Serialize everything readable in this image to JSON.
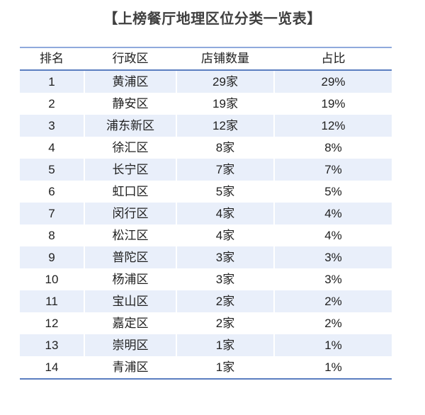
{
  "title": "【上榜餐厅地理区位分类一览表】",
  "chart_data": {
    "type": "table",
    "title": "上榜餐厅地理区位分类一览表",
    "columns": [
      "排名",
      "行政区",
      "店铺数量",
      "占比"
    ],
    "rows": [
      [
        "1",
        "黄浦区",
        "29家",
        "29%"
      ],
      [
        "2",
        "静安区",
        "19家",
        "19%"
      ],
      [
        "3",
        "浦东新区",
        "12家",
        "12%"
      ],
      [
        "4",
        "徐汇区",
        "8家",
        "8%"
      ],
      [
        "5",
        "长宁区",
        "7家",
        "7%"
      ],
      [
        "6",
        "虹口区",
        "5家",
        "5%"
      ],
      [
        "7",
        "闵行区",
        "4家",
        "4%"
      ],
      [
        "8",
        "松江区",
        "4家",
        "4%"
      ],
      [
        "9",
        "普陀区",
        "3家",
        "3%"
      ],
      [
        "10",
        "杨浦区",
        "3家",
        "3%"
      ],
      [
        "11",
        "宝山区",
        "2家",
        "2%"
      ],
      [
        "12",
        "嘉定区",
        "2家",
        "2%"
      ],
      [
        "13",
        "崇明区",
        "1家",
        "1%"
      ],
      [
        "14",
        "青浦区",
        "1家",
        "1%"
      ]
    ],
    "counts": [
      29,
      19,
      12,
      8,
      7,
      5,
      4,
      4,
      3,
      3,
      2,
      2,
      1,
      1
    ],
    "percents": [
      29,
      19,
      12,
      8,
      7,
      5,
      4,
      4,
      3,
      3,
      2,
      2,
      1,
      1
    ],
    "layout_hints": {
      "striped_rows": "odd rows light blue, even rows white",
      "text_align": "center",
      "grid": "horizontal accent borders only"
    }
  },
  "colors": {
    "border_top": "#8faadc",
    "border_strong": "#5b7ec0",
    "row_stripe": "#e9effa",
    "cell_text": "#212121",
    "title_text": "#3f3f3f",
    "background": "#ffffff"
  }
}
